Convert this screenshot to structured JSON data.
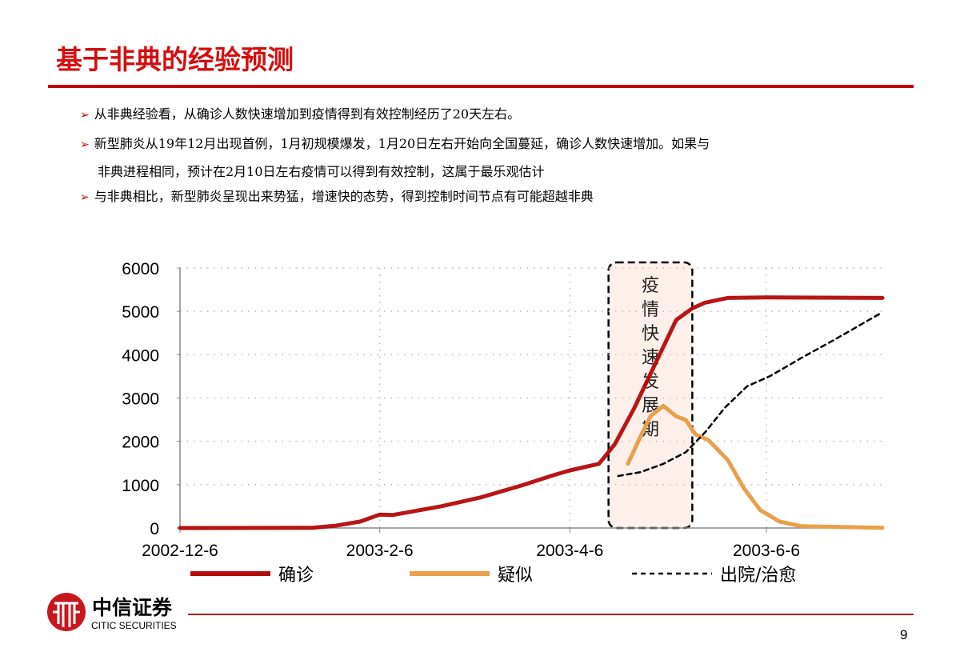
{
  "title": "基于非典的经验预测",
  "bullets": [
    "从非典经验看，从确诊人数快速增加到疫情得到有效控制经历了20天左右。",
    "新型肺炎从19年12月出现首例，1月初规模爆发，1月20日左右开始向全国蔓延，确诊人数快速增加。如果与",
    "非典进程相同，预计在2月10日左右疫情可以得到有效控制，这属于最乐观估计",
    "与非典相比，新型肺炎呈现出来势猛，增速快的态势，得到控制时间节点有可能超越非典"
  ],
  "logo": {
    "cn": "中信证券",
    "en": "CITIC SECURITIES"
  },
  "page_number": "9",
  "colors": {
    "accent": "#c00000",
    "confirmed": "#b40a0a",
    "suspected": "#e9a04a",
    "recovered": "#000000",
    "highlight": "#fdf0ea"
  },
  "chart_data": {
    "type": "line",
    "title": "",
    "xlabel": "",
    "ylabel": "",
    "ylim": [
      0,
      6000
    ],
    "xlim": [
      "2002-12-6",
      "2003-7-12"
    ],
    "yticks": [
      "0",
      "1000",
      "2000",
      "3000",
      "4000",
      "5000",
      "6000"
    ],
    "xticks": [
      "2002-12-6",
      "2003-2-6",
      "2003-4-6",
      "2003-6-6"
    ],
    "grid": true,
    "legend_position": "bottom",
    "annotation": {
      "text": "疫情快速发展期",
      "range": [
        "2003-4-18",
        "2003-5-14"
      ]
    },
    "series": [
      {
        "name": "确诊",
        "style": "solid",
        "color": "#b40a0a",
        "points": [
          [
            "2002-12-6",
            0
          ],
          [
            "2003-1-16",
            5
          ],
          [
            "2003-1-23",
            50
          ],
          [
            "2003-1-31",
            150
          ],
          [
            "2003-2-6",
            310
          ],
          [
            "2003-2-10",
            300
          ],
          [
            "2003-2-25",
            500
          ],
          [
            "2003-3-9",
            700
          ],
          [
            "2003-3-22",
            980
          ],
          [
            "2003-4-1",
            1220
          ],
          [
            "2003-4-6",
            1330
          ],
          [
            "2003-4-15",
            1480
          ],
          [
            "2003-4-17",
            1660
          ],
          [
            "2003-4-20",
            1940
          ],
          [
            "2003-4-26",
            2770
          ],
          [
            "2003-5-3",
            3870
          ],
          [
            "2003-5-9",
            4800
          ],
          [
            "2003-5-14",
            5070
          ],
          [
            "2003-5-18",
            5200
          ],
          [
            "2003-5-25",
            5310
          ],
          [
            "2003-6-6",
            5320
          ],
          [
            "2003-7-12",
            5310
          ]
        ]
      },
      {
        "name": "疑似",
        "style": "solid",
        "color": "#e9a04a",
        "points": [
          [
            "2003-4-24",
            1480
          ],
          [
            "2003-4-28",
            2120
          ],
          [
            "2003-5-1",
            2580
          ],
          [
            "2003-5-5",
            2820
          ],
          [
            "2003-5-9",
            2580
          ],
          [
            "2003-5-12",
            2490
          ],
          [
            "2003-5-15",
            2160
          ],
          [
            "2003-5-19",
            2030
          ],
          [
            "2003-5-25",
            1570
          ],
          [
            "2003-5-30",
            920
          ],
          [
            "2003-6-4",
            420
          ],
          [
            "2003-6-10",
            150
          ],
          [
            "2003-6-17",
            40
          ],
          [
            "2003-7-12",
            5
          ]
        ]
      },
      {
        "name": "出院/治愈",
        "style": "dashed",
        "color": "#000000",
        "points": [
          [
            "2003-4-21",
            1200
          ],
          [
            "2003-4-28",
            1290
          ],
          [
            "2003-5-5",
            1480
          ],
          [
            "2003-5-12",
            1750
          ],
          [
            "2003-5-18",
            2210
          ],
          [
            "2003-5-24",
            2770
          ],
          [
            "2003-5-31",
            3270
          ],
          [
            "2003-6-7",
            3500
          ],
          [
            "2003-6-17",
            3930
          ],
          [
            "2003-6-27",
            4340
          ],
          [
            "2003-7-12",
            4980
          ]
        ]
      }
    ]
  }
}
